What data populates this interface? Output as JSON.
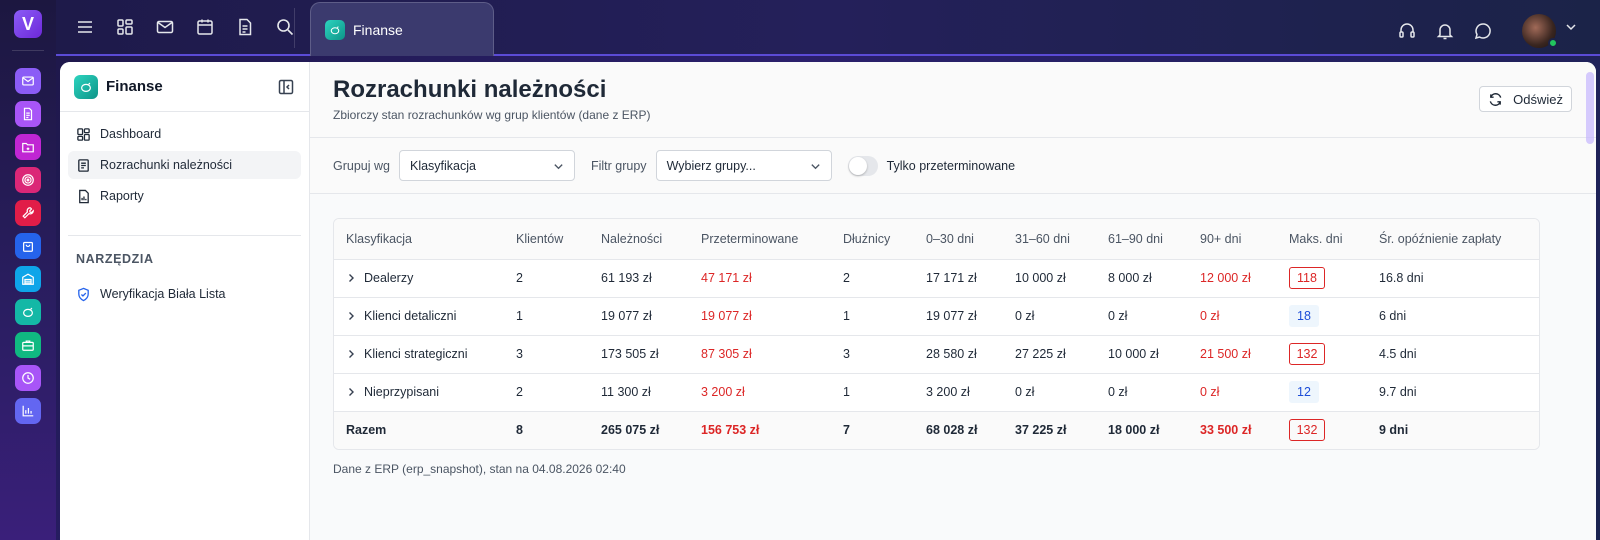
{
  "rail": {
    "logo_letter": "V",
    "apps": [
      {
        "icon": "mail-icon",
        "color": "#8b5cf6"
      },
      {
        "icon": "document-icon",
        "color": "#a855f7"
      },
      {
        "icon": "folder-icon",
        "color": "#c026d3"
      },
      {
        "icon": "target-icon",
        "color": "#db2777"
      },
      {
        "icon": "wrench-icon",
        "color": "#e11d48"
      },
      {
        "icon": "shopping-bag-icon",
        "color": "#2563eb"
      },
      {
        "icon": "warehouse-icon",
        "color": "#0ea5e9"
      },
      {
        "icon": "piggy-bank-icon",
        "color": "#14b8a6"
      },
      {
        "icon": "briefcase-icon",
        "color": "#10b981"
      },
      {
        "icon": "clock-icon",
        "color": "#a855f7"
      },
      {
        "icon": "bar-chart-icon",
        "color": "#6366f1"
      }
    ]
  },
  "topbar": {
    "tab_label": "Finanse"
  },
  "sidebar": {
    "title": "Finanse",
    "items": [
      {
        "label": "Dashboard"
      },
      {
        "label": "Rozrachunki należności"
      },
      {
        "label": "Raporty"
      }
    ],
    "section_title": "NARZĘDZIA",
    "tools": [
      {
        "label": "Weryfikacja Biała Lista"
      }
    ]
  },
  "page": {
    "title": "Rozrachunki należności",
    "subtitle": "Zbiorczy stan rozrachunków wg grup klientów (dane z ERP)",
    "refresh_label": "Odśwież"
  },
  "filters": {
    "group_by_label": "Grupuj wg",
    "group_by_value": "Klasyfikacja",
    "group_filter_label": "Filtr grupy",
    "group_filter_placeholder": "Wybierz grupy...",
    "overdue_only_label": "Tylko przeterminowane",
    "overdue_only": false
  },
  "table": {
    "columns": [
      "Klasyfikacja",
      "Klientów",
      "Należności",
      "Przeterminowane",
      "Dłużnicy",
      "0–30 dni",
      "31–60 dni",
      "61–90 dni",
      "90+ dni",
      "Maks. dni",
      "Śr. opóźnienie zapłaty"
    ],
    "rows": [
      {
        "name": "Dealerzy",
        "clients": "2",
        "receivables": "61 193 zł",
        "overdue": "47 171 zł",
        "debtors": "2",
        "d0_30": "17 171 zł",
        "d31_60": "10 000 zł",
        "d61_90": "8 000 zł",
        "d90": "12 000 zł",
        "max_days": "118",
        "max_style": "red",
        "avg_delay": "16.8 dni"
      },
      {
        "name": "Klienci detaliczni",
        "clients": "1",
        "receivables": "19 077 zł",
        "overdue": "19 077 zł",
        "debtors": "1",
        "d0_30": "19 077 zł",
        "d31_60": "0 zł",
        "d61_90": "0 zł",
        "d90": "0 zł",
        "max_days": "18",
        "max_style": "blue",
        "avg_delay": "6 dni"
      },
      {
        "name": "Klienci strategiczni",
        "clients": "3",
        "receivables": "173 505 zł",
        "overdue": "87 305 zł",
        "debtors": "3",
        "d0_30": "28 580 zł",
        "d31_60": "27 225 zł",
        "d61_90": "10 000 zł",
        "d90": "21 500 zł",
        "max_days": "132",
        "max_style": "red",
        "avg_delay": "4.5 dni"
      },
      {
        "name": "Nieprzypisani",
        "clients": "2",
        "receivables": "11 300 zł",
        "overdue": "3 200 zł",
        "debtors": "1",
        "d0_30": "3 200 zł",
        "d31_60": "0 zł",
        "d61_90": "0 zł",
        "d90": "0 zł",
        "max_days": "12",
        "max_style": "blue",
        "avg_delay": "9.7 dni"
      }
    ],
    "total": {
      "name": "Razem",
      "clients": "8",
      "receivables": "265 075 zł",
      "overdue": "156 753 zł",
      "debtors": "7",
      "d0_30": "68 028 zł",
      "d31_60": "37 225 zł",
      "d61_90": "18 000 zł",
      "d90": "33 500 zł",
      "max_days": "132",
      "avg_delay": "9 dni"
    }
  },
  "footnote": "Dane z ERP (erp_snapshot), stan na 04.08.2026 02:40"
}
